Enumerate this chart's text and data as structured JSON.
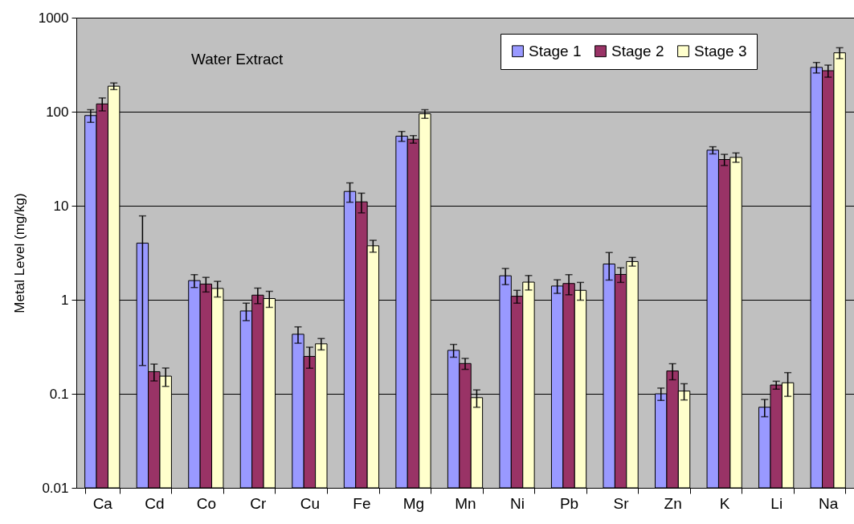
{
  "chart_data": {
    "type": "bar",
    "ylabel": "Metal Level (mg/kg)",
    "annotations": [
      "Water Extract"
    ],
    "categories": [
      "Ca",
      "Cd",
      "Co",
      "Cr",
      "Cu",
      "Fe",
      "Mg",
      "Mn",
      "Ni",
      "Pb",
      "Sr",
      "Zn",
      "K",
      "Li",
      "Na"
    ],
    "series": [
      {
        "name": "Stage 1",
        "color": "#9999ff",
        "values": [
          91,
          4.0,
          1.6,
          0.76,
          0.43,
          14.2,
          55,
          0.29,
          1.8,
          1.4,
          2.4,
          0.1,
          39,
          0.072,
          296
        ],
        "errors": [
          14,
          3.8,
          0.25,
          0.16,
          0.085,
          3.3,
          6.6,
          0.045,
          0.35,
          0.23,
          0.78,
          0.015,
          3.4,
          0.015,
          38
        ]
      },
      {
        "name": "Stage 2",
        "color": "#993366",
        "values": [
          121,
          0.172,
          1.47,
          1.12,
          0.25,
          11.0,
          51,
          0.21,
          1.09,
          1.49,
          1.86,
          0.175,
          31,
          0.124,
          273
        ],
        "errors": [
          19,
          0.035,
          0.26,
          0.21,
          0.063,
          2.6,
          4.7,
          0.028,
          0.17,
          0.36,
          0.33,
          0.034,
          4.2,
          0.012,
          40
        ]
      },
      {
        "name": "Stage 3",
        "color": "#ffffcc",
        "values": [
          187,
          0.154,
          1.32,
          1.03,
          0.34,
          3.75,
          95,
          0.091,
          1.54,
          1.26,
          2.55,
          0.107,
          32.7,
          0.131,
          423
        ],
        "errors": [
          15,
          0.034,
          0.25,
          0.2,
          0.047,
          0.54,
          10,
          0.019,
          0.27,
          0.27,
          0.27,
          0.021,
          3.7,
          0.037,
          56
        ]
      }
    ],
    "log": true,
    "ylim": [
      0.01,
      1000
    ],
    "yticks": [
      0.01,
      0.1,
      1,
      10,
      100,
      1000
    ],
    "grid": "y",
    "legend": "top right"
  }
}
